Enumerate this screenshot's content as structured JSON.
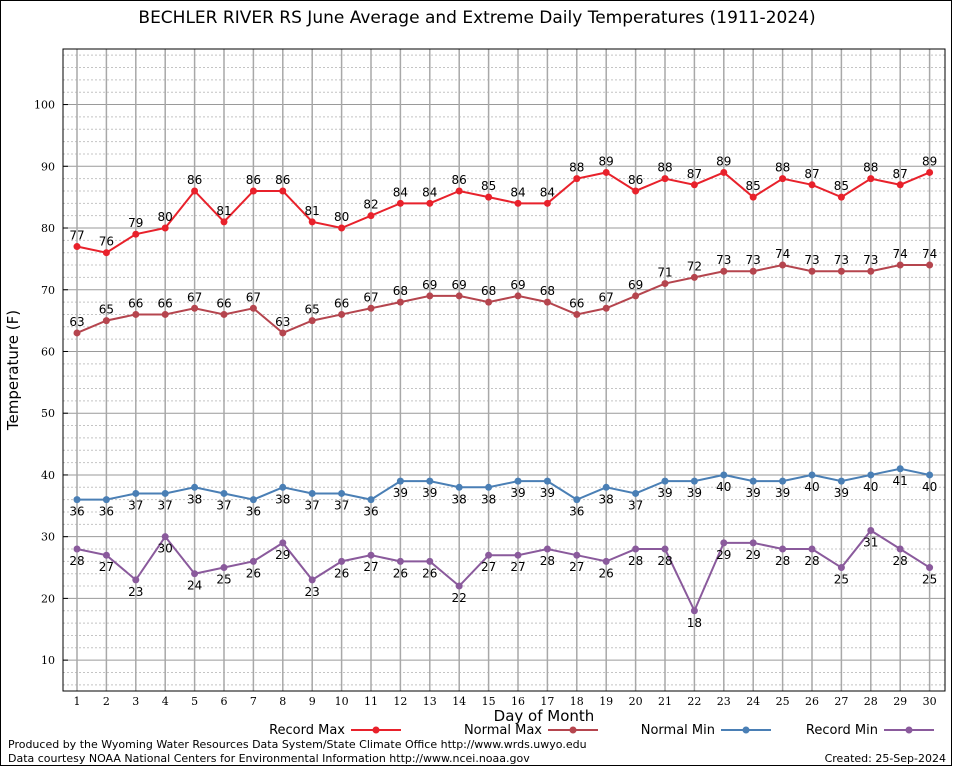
{
  "chart_data": {
    "type": "line",
    "title": "BECHLER RIVER RS June Average and Extreme Daily Temperatures (1911-2024)",
    "xlabel": "Day of Month",
    "ylabel": "Temperature (F)",
    "categories": [
      "1",
      "2",
      "3",
      "4",
      "5",
      "6",
      "7",
      "8",
      "9",
      "10",
      "11",
      "12",
      "13",
      "14",
      "15",
      "16",
      "17",
      "18",
      "19",
      "20",
      "21",
      "22",
      "23",
      "24",
      "25",
      "26",
      "27",
      "28",
      "29",
      "30"
    ],
    "yticks": [
      "10",
      "20",
      "30",
      "40",
      "50",
      "60",
      "70",
      "80",
      "90",
      "100"
    ],
    "ylim": [
      5,
      109
    ],
    "grid": true,
    "legend_position": "bottom",
    "series": [
      {
        "name": "Record Max",
        "color": "#e8212b",
        "values": [
          77,
          76,
          79,
          80,
          86,
          81,
          86,
          86,
          81,
          80,
          82,
          84,
          84,
          86,
          85,
          84,
          84,
          88,
          89,
          86,
          88,
          87,
          89,
          85,
          88,
          87,
          85,
          88,
          87,
          89
        ],
        "labels": [
          "77",
          "76",
          "79",
          "80",
          "86",
          "81",
          "86",
          "86",
          "81",
          "80",
          "82",
          "84",
          "84",
          "86",
          "85",
          "84",
          "84",
          "88",
          "89",
          "86",
          "88",
          "87",
          "89",
          "85",
          "88",
          "87",
          "85",
          "88",
          "87",
          "89"
        ]
      },
      {
        "name": "Normal Max",
        "color": "#b5454e",
        "values": [
          63,
          65,
          66,
          66,
          67,
          66,
          67,
          63,
          65,
          66,
          67,
          68,
          69,
          69,
          68,
          69,
          68,
          66,
          67,
          69,
          71,
          72,
          73,
          73,
          74,
          73,
          73,
          73,
          74,
          74
        ],
        "labels": [
          "63",
          "65",
          "66",
          "66",
          "67",
          "66",
          "67",
          "63",
          "65",
          "66",
          "67",
          "68",
          "69",
          "69",
          "68",
          "69",
          "68",
          "66",
          "67",
          "69",
          "71",
          "72",
          "73",
          "73",
          "74",
          "73",
          "73",
          "73",
          "74",
          "74"
        ]
      },
      {
        "name": "Normal Min",
        "color": "#4a7fb5",
        "values": [
          36,
          36,
          37,
          37,
          38,
          37,
          36,
          38,
          37,
          37,
          36,
          39,
          39,
          38,
          38,
          39,
          39,
          36,
          38,
          37,
          39,
          39,
          40,
          39,
          39,
          40,
          39,
          40,
          41,
          40
        ],
        "labels": [
          "36",
          "36",
          "37",
          "37",
          "38",
          "37",
          "36",
          "38",
          "37",
          "37",
          "36",
          "39",
          "39",
          "38",
          "38",
          "39",
          "39",
          "36",
          "38",
          "37",
          "39",
          "39",
          "40",
          "39",
          "39",
          "40",
          "39",
          "40",
          "41",
          "40"
        ]
      },
      {
        "name": "Record Min",
        "color": "#8a5a9c",
        "values": [
          28,
          27,
          23,
          30,
          24,
          25,
          26,
          29,
          23,
          26,
          27,
          26,
          26,
          22,
          27,
          27,
          28,
          27,
          26,
          28,
          28,
          18,
          29,
          29,
          28,
          28,
          25,
          31,
          28,
          25
        ],
        "labels": [
          "28",
          "27",
          "23",
          "30",
          "24",
          "25",
          "26",
          "29",
          "23",
          "26",
          "27",
          "26",
          "26",
          "22",
          "27",
          "27",
          "28",
          "27",
          "26",
          "28",
          "28",
          "18",
          "29",
          "29",
          "28",
          "28",
          "25",
          "31",
          "28",
          "25"
        ]
      }
    ]
  },
  "footer": {
    "produced_by": "Produced by the Wyoming Water Resources Data System/State Climate Office http://www.wrds.uwyo.edu",
    "courtesy": "Data courtesy NOAA National Centers for Environmental Information http://www.ncei.noaa.gov",
    "created": "Created: 25-Sep-2024"
  }
}
